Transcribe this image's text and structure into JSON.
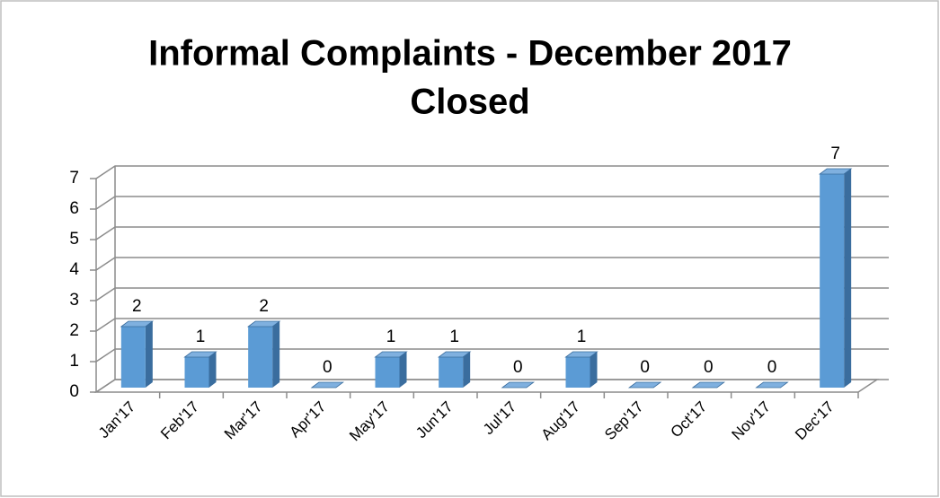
{
  "chart_data": {
    "type": "bar3d",
    "title": [
      "Informal Complaints - December 2017",
      "Closed"
    ],
    "categories": [
      "Jan'17",
      "Feb'17",
      "Mar'17",
      "Apr'17",
      "May'17",
      "Jun'17",
      "Jul'17",
      "Aug'17",
      "Sep'17",
      "Oct'17",
      "Nov'17",
      "Dec'17"
    ],
    "values": [
      2,
      1,
      2,
      0,
      1,
      1,
      0,
      1,
      0,
      0,
      0,
      7
    ],
    "color": "#5b9bd5",
    "ylim": [
      0,
      7
    ],
    "yticks": [
      0,
      1,
      2,
      3,
      4,
      5,
      6,
      7
    ],
    "grid": true,
    "data_labels": true
  }
}
